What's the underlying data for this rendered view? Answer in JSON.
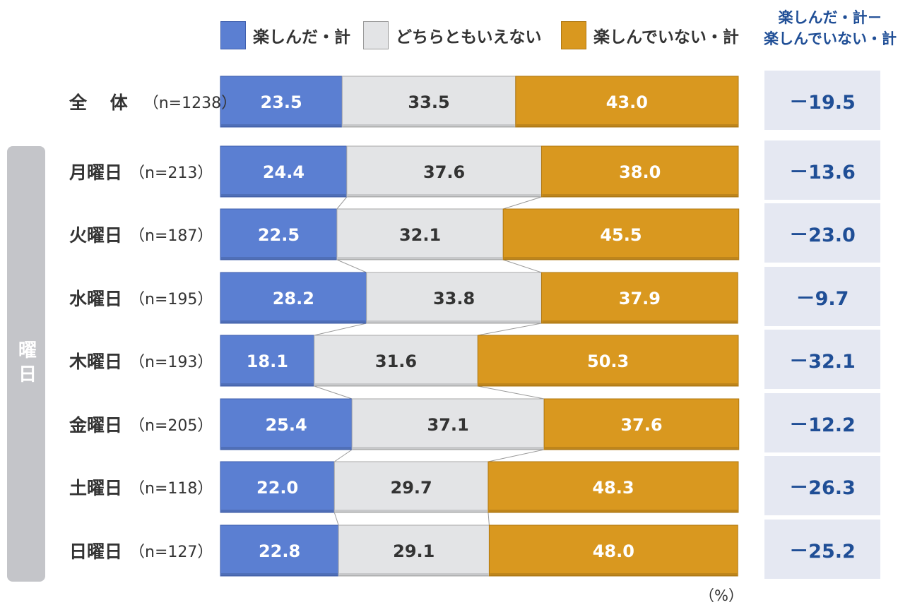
{
  "legend": {
    "enjoyed": "楽しんだ・計",
    "neutral": "どちらともいえない",
    "not_enjoyed": "楽しんでいない・計"
  },
  "diff_header": {
    "line1": "楽しんだ・計－",
    "line2": "楽しんでいない・計"
  },
  "group_label": "曜日",
  "unit": "（%）",
  "colors": {
    "enjoyed": "#5b7fd2",
    "neutral": "#e3e4e6",
    "not_enjoyed": "#d9981f",
    "diff_text": "#1f4e96",
    "diff_bg": "#e5e8f2",
    "group_band": "#c4c5c9"
  },
  "rows": [
    {
      "label": "全 体",
      "n": "（n=1238）",
      "diff": "－19.5"
    },
    {
      "label": "月曜日",
      "n": "（n=213）",
      "diff": "－13.6"
    },
    {
      "label": "火曜日",
      "n": "（n=187）",
      "diff": "－23.0"
    },
    {
      "label": "水曜日",
      "n": "（n=195）",
      "diff": "－9.7"
    },
    {
      "label": "木曜日",
      "n": "（n=193）",
      "diff": "－32.1"
    },
    {
      "label": "金曜日",
      "n": "（n=205）",
      "diff": "－12.2"
    },
    {
      "label": "土曜日",
      "n": "（n=118）",
      "diff": "－26.3"
    },
    {
      "label": "日曜日",
      "n": "（n=127）",
      "diff": "－25.2"
    }
  ],
  "chart_data": {
    "type": "bar",
    "orientation": "horizontal",
    "stacked": true,
    "percent_stacked": true,
    "categories": [
      "全 体",
      "月曜日",
      "火曜日",
      "水曜日",
      "木曜日",
      "金曜日",
      "土曜日",
      "日曜日"
    ],
    "series": [
      {
        "name": "楽しんだ・計",
        "values": [
          23.5,
          24.4,
          22.5,
          28.2,
          18.1,
          25.4,
          22.0,
          22.8
        ]
      },
      {
        "name": "どちらともいえない",
        "values": [
          33.5,
          37.6,
          32.1,
          33.8,
          31.6,
          37.1,
          29.7,
          29.1
        ]
      },
      {
        "name": "楽しんでいない・計",
        "values": [
          43.0,
          38.0,
          45.5,
          37.9,
          50.3,
          37.6,
          48.3,
          48.0
        ]
      }
    ],
    "value_labels": [
      [
        "23.5",
        "24.4",
        "22.5",
        "28.2",
        "18.1",
        "25.4",
        "22.0",
        "22.8"
      ],
      [
        "33.5",
        "37.6",
        "32.1",
        "33.8",
        "31.6",
        "37.1",
        "29.7",
        "29.1"
      ],
      [
        "43.0",
        "38.0",
        "45.5",
        "37.9",
        "50.3",
        "37.6",
        "48.3",
        "48.0"
      ]
    ],
    "xlim": [
      0,
      100
    ],
    "legend_position": "top",
    "grid": false,
    "series_lines": true
  }
}
